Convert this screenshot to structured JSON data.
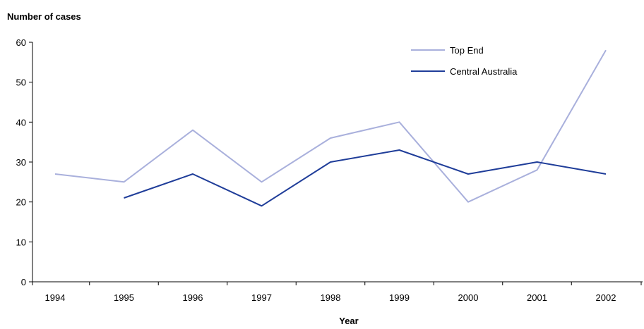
{
  "chart_data": {
    "type": "line",
    "title": "",
    "ylabel": "Number of cases",
    "xlabel": "Year",
    "ylim": [
      0,
      60
    ],
    "yticks": [
      "0",
      "10",
      "20",
      "30",
      "40",
      "50",
      "60"
    ],
    "ytick_values": [
      0,
      10,
      20,
      30,
      40,
      50,
      60
    ],
    "categories": [
      "1994",
      "1995",
      "1996",
      "1997",
      "1998",
      "1999",
      "2000",
      "2001",
      "2002"
    ],
    "grid": false,
    "legend_position": "top-right",
    "series": [
      {
        "name": "Top End",
        "color": "#a9b0dc",
        "values": [
          27,
          25,
          38,
          25,
          36,
          40,
          20,
          28,
          58
        ]
      },
      {
        "name": "Central Australia",
        "color": "#1f3d99",
        "values": [
          null,
          21,
          27,
          19,
          30,
          33,
          27,
          30,
          27
        ]
      }
    ],
    "axis_color": "#000000"
  }
}
